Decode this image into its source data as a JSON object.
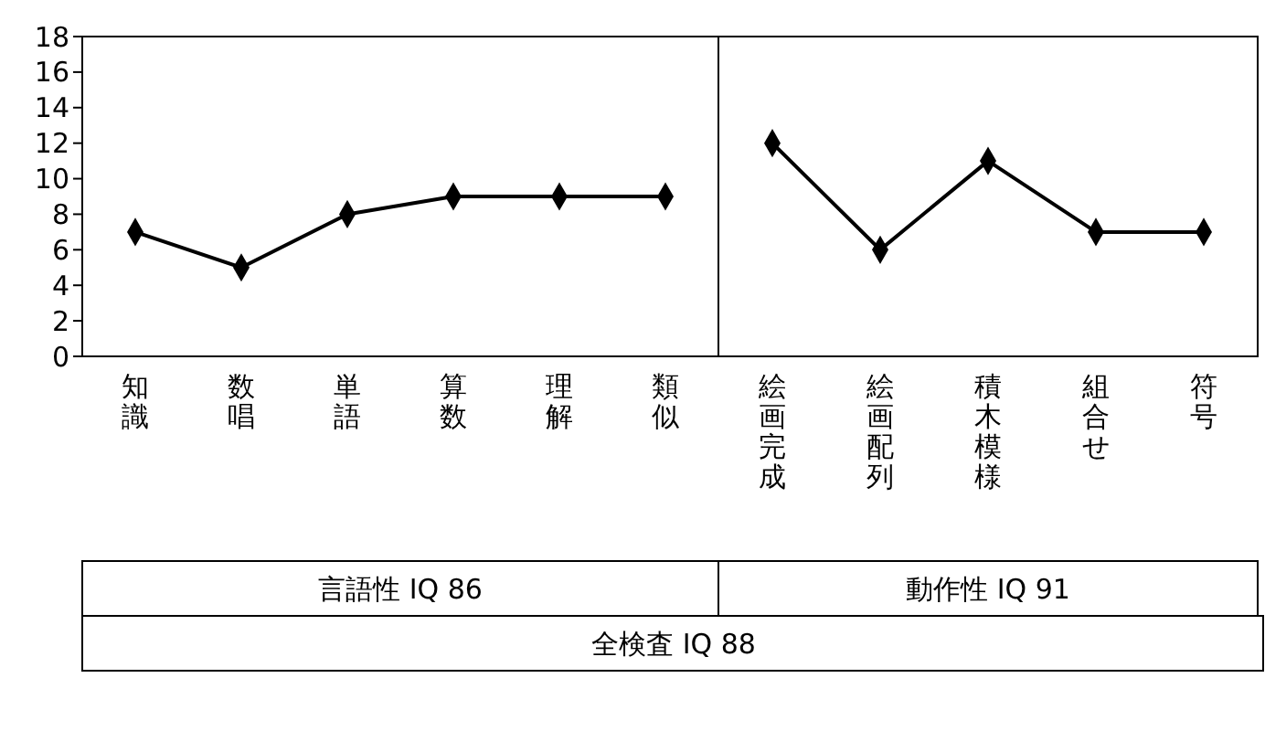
{
  "chart_data": [
    {
      "type": "line",
      "categories": [
        "知識",
        "数唱",
        "単語",
        "算数",
        "理解",
        "類似"
      ],
      "values": [
        7,
        5,
        8,
        9,
        9,
        9
      ],
      "color": "#000000",
      "marker": "diamond",
      "line_style": "solid",
      "ylim": [
        0,
        18
      ],
      "yticks": [
        0,
        2,
        4,
        6,
        8,
        10,
        12,
        14,
        16,
        18
      ],
      "grid": false,
      "xlabel": "言語性 IQ 86",
      "annotations": [
        "全検査 IQ 88"
      ]
    },
    {
      "type": "line",
      "categories": [
        "絵画完成",
        "絵画配列",
        "積木模様",
        "組合せ",
        "符号"
      ],
      "values": [
        12,
        6,
        11,
        7,
        7
      ],
      "color": "#000000",
      "marker": "diamond",
      "line_style": "solid",
      "ylim": [
        0,
        18
      ],
      "yticks": [
        0,
        2,
        4,
        6,
        8,
        10,
        12,
        14,
        16,
        18
      ],
      "grid": false,
      "tick_labels": "x",
      "xlabel": "動作性 IQ 91"
    }
  ]
}
